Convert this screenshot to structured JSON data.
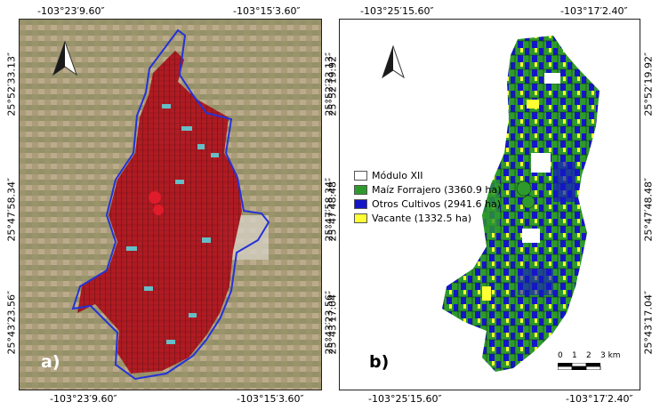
{
  "panel_a": {
    "label": "a)",
    "top_coords": [
      "-103°23′9.60″",
      "-103°15′3.60″"
    ],
    "bottom_coords": [
      "-103°23′9.60″",
      "-103°15′3.60″"
    ],
    "left_coords": [
      "25°52′33.13″",
      "25°47′58.34″",
      "25°43′23.56″"
    ],
    "right_coords": [
      "25°52′33.13″",
      "25°47′58.34″",
      "25°43′23.56″"
    ]
  },
  "panel_b": {
    "label": "b)",
    "top_coords": [
      "-103°25′15.60″",
      "-103°17′2.40″"
    ],
    "bottom_coords": [
      "-103°25′15.60″",
      "-103°17′2.40″"
    ],
    "left_coords": [
      "25°52′19.92″",
      "25°47′48.48″",
      "25°43′17.04″"
    ],
    "right_coords": [
      "25°52′19.92″",
      "25°47′48.48″",
      "25°43′17.04″"
    ],
    "legend": [
      {
        "label": "Módulo XII",
        "color": "#ffffff"
      },
      {
        "label": "Maíz Forrajero (3360.9 ha)",
        "color": "#2e9a2e"
      },
      {
        "label": "Otros Cultivos (2941.6 ha)",
        "color": "#1515c8"
      },
      {
        "label": "Vacante (1332.5 ha)",
        "color": "#ffff33"
      }
    ],
    "scale_bar": {
      "ticks": [
        "0",
        "1",
        "2",
        "3 km"
      ]
    }
  },
  "colors": {
    "boundary": "#2432d8",
    "parcel_red": "#b0141e",
    "parcel_cyan": "#5fd0d8",
    "satellite_bg": "#a89a78"
  },
  "icons": [
    "north-arrow-icon"
  ]
}
